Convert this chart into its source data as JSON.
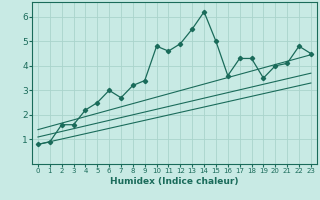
{
  "xlabel": "Humidex (Indice chaleur)",
  "ylabel": "",
  "xlim": [
    -0.5,
    23.5
  ],
  "ylim": [
    0,
    6.6
  ],
  "xticks": [
    0,
    1,
    2,
    3,
    4,
    5,
    6,
    7,
    8,
    9,
    10,
    11,
    12,
    13,
    14,
    15,
    16,
    17,
    18,
    19,
    20,
    21,
    22,
    23
  ],
  "yticks": [
    1,
    2,
    3,
    4,
    5,
    6
  ],
  "bg_color": "#c8eae4",
  "line_color": "#1a6b5a",
  "grid_color": "#aad4cc",
  "line1_x": [
    0,
    1,
    2,
    3,
    4,
    5,
    6,
    7,
    8,
    9,
    10,
    11,
    12,
    13,
    14,
    15,
    16,
    17,
    18,
    19,
    20,
    21,
    22,
    23
  ],
  "line1_y": [
    0.8,
    0.9,
    1.6,
    1.6,
    2.2,
    2.5,
    3.0,
    2.7,
    3.2,
    3.4,
    4.8,
    4.6,
    4.9,
    5.5,
    6.2,
    5.0,
    3.6,
    4.3,
    4.3,
    3.5,
    4.0,
    4.1,
    4.8,
    4.5
  ],
  "line2_y0": 0.8,
  "line2_y1": 3.3,
  "line3_y0": 1.1,
  "line3_y1": 3.7,
  "line4_y0": 1.4,
  "line4_y1": 4.45
}
